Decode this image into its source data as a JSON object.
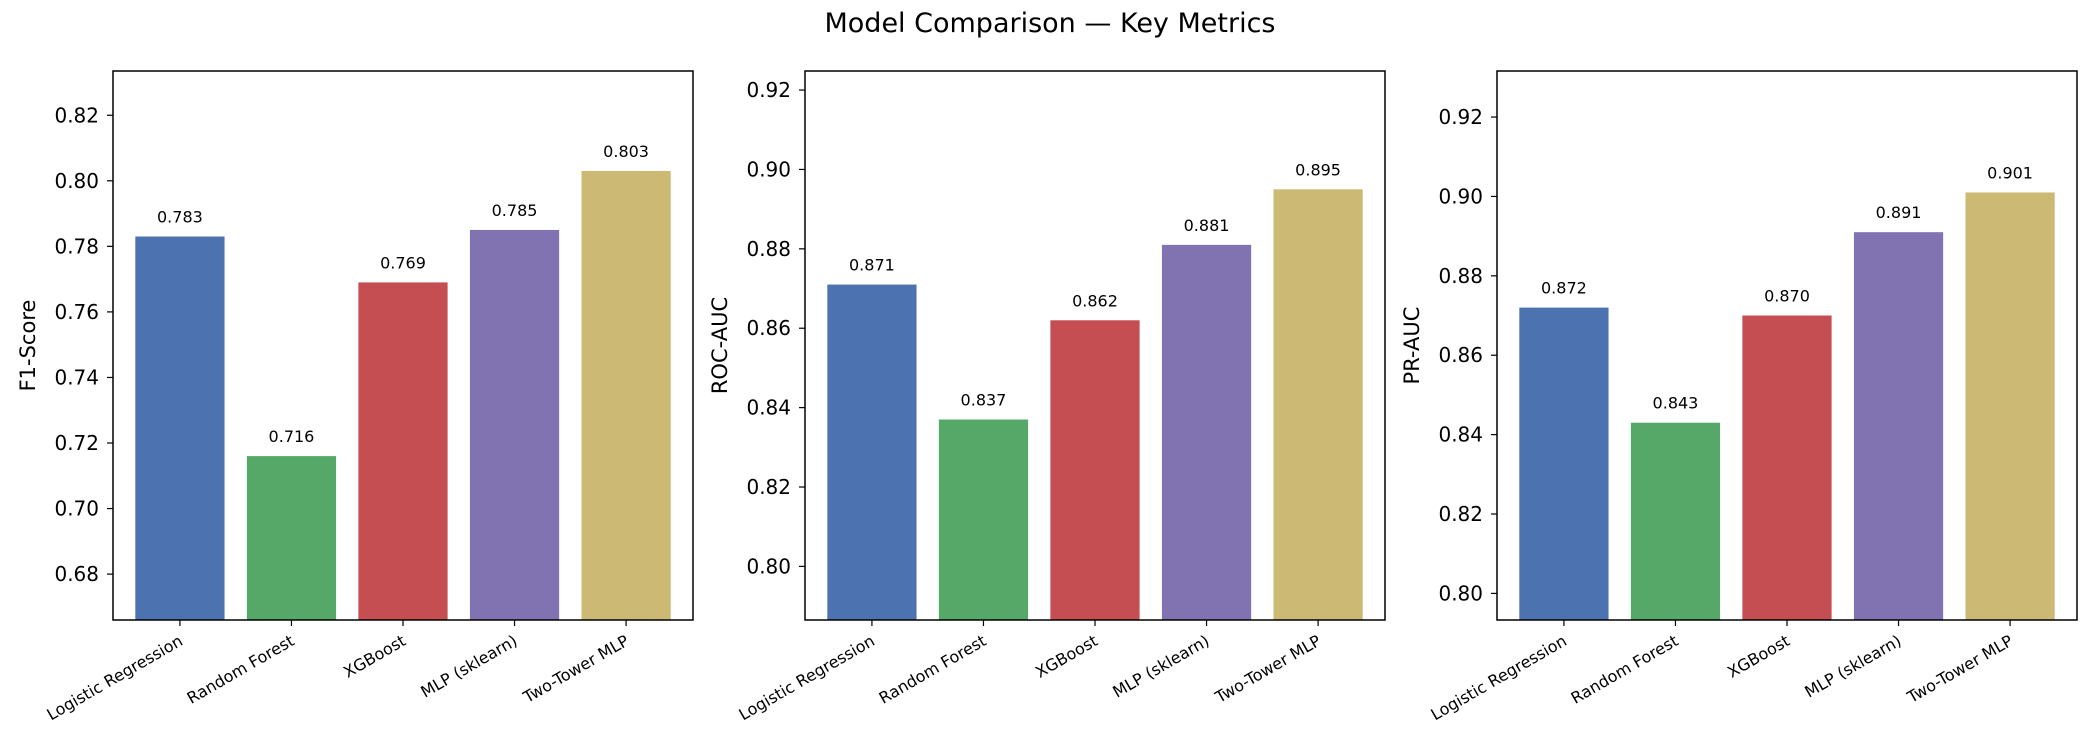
{
  "figure": {
    "title": "Model Comparison — Key Metrics"
  },
  "chart_data": [
    {
      "type": "bar",
      "title": "",
      "xlabel": "",
      "ylabel": "F1-Score",
      "categories": [
        "Logistic Regression",
        "Random Forest",
        "XGBoost",
        "MLP (sklearn)",
        "Two-Tower MLP"
      ],
      "values": [
        0.783,
        0.716,
        0.769,
        0.785,
        0.803
      ],
      "value_labels": [
        "0.783",
        "0.716",
        "0.769",
        "0.785",
        "0.803"
      ],
      "colors": [
        "#4c72b0",
        "#55a868",
        "#c44e52",
        "#8172b2",
        "#ccb974"
      ],
      "ylim": [
        0.666,
        0.8335
      ],
      "yticks": [
        0.68,
        0.7,
        0.72,
        0.74,
        0.76,
        0.78,
        0.8,
        0.82
      ],
      "ytick_labels": [
        "0.68",
        "0.70",
        "0.72",
        "0.74",
        "0.76",
        "0.78",
        "0.80",
        "0.82"
      ],
      "grid": false,
      "legend": "none"
    },
    {
      "type": "bar",
      "title": "",
      "xlabel": "",
      "ylabel": "ROC-AUC",
      "categories": [
        "Logistic Regression",
        "Random Forest",
        "XGBoost",
        "MLP (sklearn)",
        "Two-Tower MLP"
      ],
      "values": [
        0.871,
        0.837,
        0.862,
        0.881,
        0.895
      ],
      "value_labels": [
        "0.871",
        "0.837",
        "0.862",
        "0.881",
        "0.895"
      ],
      "colors": [
        "#4c72b0",
        "#55a868",
        "#c44e52",
        "#8172b2",
        "#ccb974"
      ],
      "ylim": [
        0.7865,
        0.9248
      ],
      "yticks": [
        0.8,
        0.82,
        0.84,
        0.86,
        0.88,
        0.9,
        0.92
      ],
      "ytick_labels": [
        "0.80",
        "0.82",
        "0.84",
        "0.86",
        "0.88",
        "0.90",
        "0.92"
      ],
      "grid": false,
      "legend": "none"
    },
    {
      "type": "bar",
      "title": "",
      "xlabel": "",
      "ylabel": "PR-AUC",
      "categories": [
        "Logistic Regression",
        "Random Forest",
        "XGBoost",
        "MLP (sklearn)",
        "Two-Tower MLP"
      ],
      "values": [
        0.872,
        0.843,
        0.87,
        0.891,
        0.901
      ],
      "value_labels": [
        "0.872",
        "0.843",
        "0.870",
        "0.891",
        "0.901"
      ],
      "colors": [
        "#4c72b0",
        "#55a868",
        "#c44e52",
        "#8172b2",
        "#ccb974"
      ],
      "ylim": [
        0.7933,
        0.9316
      ],
      "yticks": [
        0.8,
        0.82,
        0.84,
        0.86,
        0.88,
        0.9,
        0.92
      ],
      "ytick_labels": [
        "0.80",
        "0.82",
        "0.84",
        "0.86",
        "0.88",
        "0.90",
        "0.92"
      ],
      "grid": false,
      "legend": "none"
    }
  ]
}
